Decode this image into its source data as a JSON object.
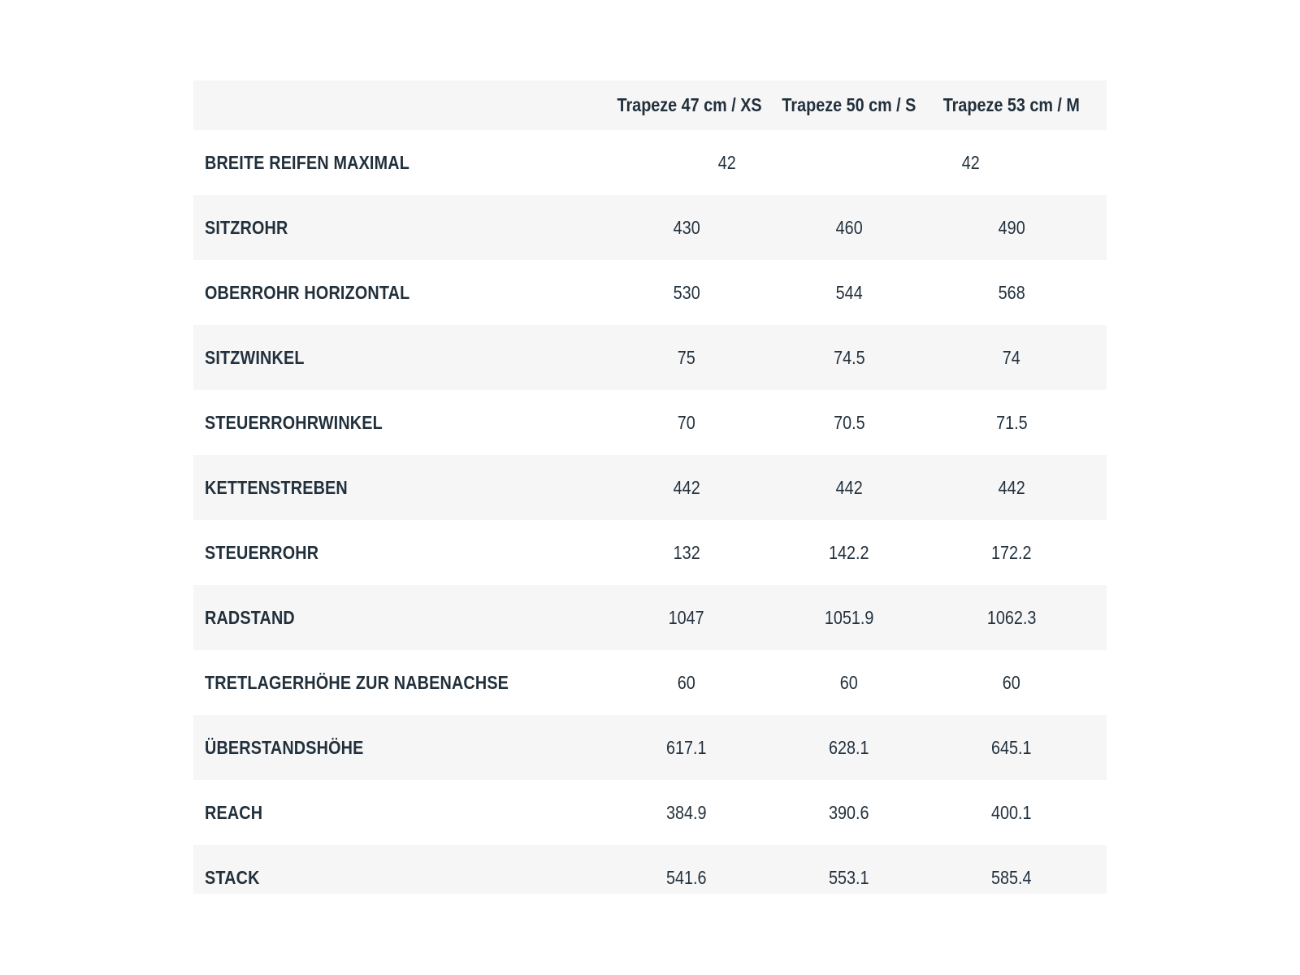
{
  "style": {
    "page_background": "#ffffff",
    "row_shade_color": "#f6f6f7",
    "text_color": "#22303c"
  },
  "chart_data": {
    "type": "table",
    "columns": [
      "Trapeze 47 cm / XS",
      "Trapeze 50 cm / S",
      "Trapeze 53 cm / M"
    ],
    "rows": [
      {
        "label": "BREITE REIFEN MAXIMAL",
        "values": [
          "42",
          "42"
        ]
      },
      {
        "label": "SITZROHR",
        "values": [
          "430",
          "460",
          "490"
        ]
      },
      {
        "label": "OBERROHR HORIZONTAL",
        "values": [
          "530",
          "544",
          "568"
        ]
      },
      {
        "label": "SITZWINKEL",
        "values": [
          "75",
          "74.5",
          "74"
        ]
      },
      {
        "label": "STEUERROHRWINKEL",
        "values": [
          "70",
          "70.5",
          "71.5"
        ]
      },
      {
        "label": "KETTENSTREBEN",
        "values": [
          "442",
          "442",
          "442"
        ]
      },
      {
        "label": "STEUERROHR",
        "values": [
          "132",
          "142.2",
          "172.2"
        ]
      },
      {
        "label": "RADSTAND",
        "values": [
          "1047",
          "1051.9",
          "1062.3"
        ]
      },
      {
        "label": "TRETLAGERHÖHE ZUR NABENACHSE",
        "values": [
          "60",
          "60",
          "60"
        ]
      },
      {
        "label": "ÜBERSTANDSHÖHE",
        "values": [
          "617.1",
          "628.1",
          "645.1"
        ]
      },
      {
        "label": "REACH",
        "values": [
          "384.9",
          "390.6",
          "400.1"
        ]
      },
      {
        "label": "STACK",
        "values": [
          "541.6",
          "553.1",
          "585.4"
        ]
      }
    ],
    "layout": {
      "shaded_rows": "header and alternating rows (SITZROHR, SITZWINKEL, KETTENSTREBEN, RADSTAND, ÜBERSTANDSHÖHE, STACK)",
      "note_first_row": "BREITE REIFEN MAXIMAL has only two value cells, each spanning 1.5 columns",
      "last_row_clipped": true
    }
  }
}
